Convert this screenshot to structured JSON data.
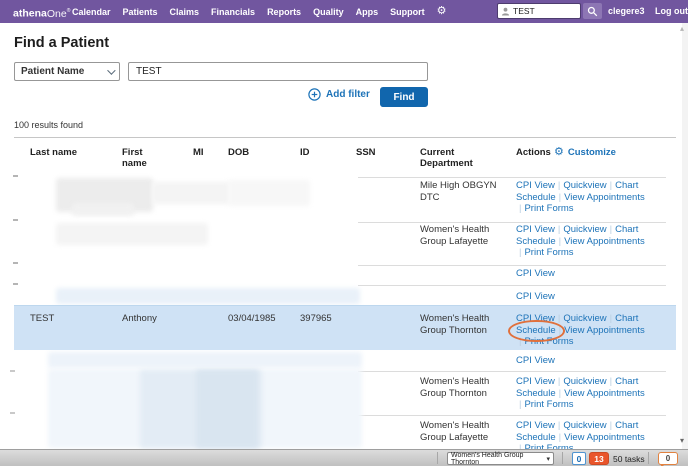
{
  "nav": {
    "brand_bold": "athena",
    "brand_light": "One",
    "brand_mark": "®",
    "items": [
      "Calendar",
      "Patients",
      "Claims",
      "Financials",
      "Reports",
      "Quality",
      "Apps",
      "Support"
    ],
    "search_value": "TEST",
    "username": "clegere3",
    "logout_label": "Log out"
  },
  "page": {
    "title": "Find a Patient",
    "search_type_value": "Patient Name",
    "search_input_value": "TEST",
    "add_filter_label": "Add filter",
    "find_button_label": "Find",
    "results_text": "100 results found"
  },
  "table": {
    "headers": [
      "Last name",
      "First name",
      "MI",
      "DOB",
      "ID",
      "SSN",
      "Current Department",
      "Actions"
    ],
    "customize_label": "Customize",
    "rows": [
      {
        "department": "Mile High OBGYN DTC",
        "actions": [
          "CPI View",
          "Quickview",
          "Chart",
          "Schedule",
          "View Appointments",
          "Print Forms"
        ]
      },
      {
        "department": "Women's Health Group Lafayette",
        "actions": [
          "CPI View",
          "Quickview",
          "Chart",
          "Schedule",
          "View Appointments",
          "Print Forms"
        ]
      },
      {
        "actions": [
          "CPI View"
        ]
      },
      {
        "actions": [
          "CPI View"
        ]
      },
      {
        "last_name": "TEST",
        "first_name": "Anthony",
        "dob": "03/04/1985",
        "patient_id": "397965",
        "department": "Women's Health Group Thornton",
        "actions": [
          "CPI View",
          "Quickview",
          "Chart",
          "Schedule",
          "View Appointments",
          "Print Forms"
        ],
        "highlighted": true,
        "annotated_action": "Schedule"
      },
      {
        "actions": [
          "CPI View"
        ]
      },
      {
        "department": "Women's Health Group Thornton",
        "actions": [
          "CPI View",
          "Quickview",
          "Chart",
          "Schedule",
          "View Appointments",
          "Print Forms"
        ]
      },
      {
        "department": "Women's Health Group Lafayette",
        "actions": [
          "CPI View",
          "Quickview",
          "Chart",
          "Schedule",
          "View Appointments",
          "Print Forms"
        ]
      }
    ]
  },
  "footer": {
    "department": "Women's Health Group Thornton",
    "badge_blue": "0",
    "badge_orange": "13",
    "tasks_label": "50 tasks",
    "bubble_badge": "0"
  },
  "colors": {
    "nav_purple": "#71569f",
    "nav_button_purple": "#8d76b4",
    "link_blue": "#1d73b8",
    "find_button_blue": "#1166ad",
    "highlight_row": "#cfe2f5",
    "annotation_orange": "#e0703c",
    "badge_orange": "#e9552b"
  }
}
